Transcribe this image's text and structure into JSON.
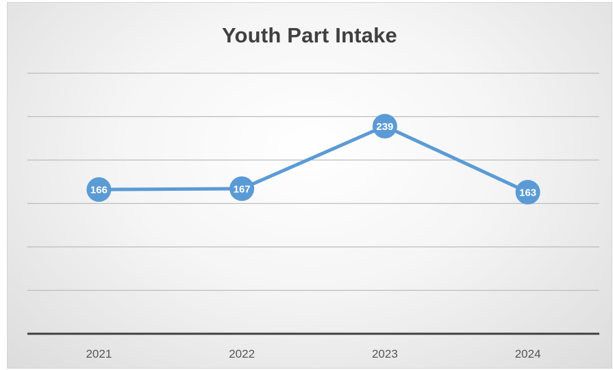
{
  "chart_data": {
    "type": "line",
    "title": "Youth Part Intake",
    "xlabel": "",
    "ylabel": "",
    "categories": [
      "2021",
      "2022",
      "2023",
      "2024"
    ],
    "series": [
      {
        "values": [
          166,
          167,
          239,
          163
        ]
      }
    ],
    "ylim": [
      0,
      300
    ],
    "y_gridline_step": 50,
    "grid": true,
    "legend": "none",
    "data_labels": true,
    "line_color": "#5B9BD5",
    "axis_color": "#404040",
    "gridline_color": "#bcbcbc"
  }
}
